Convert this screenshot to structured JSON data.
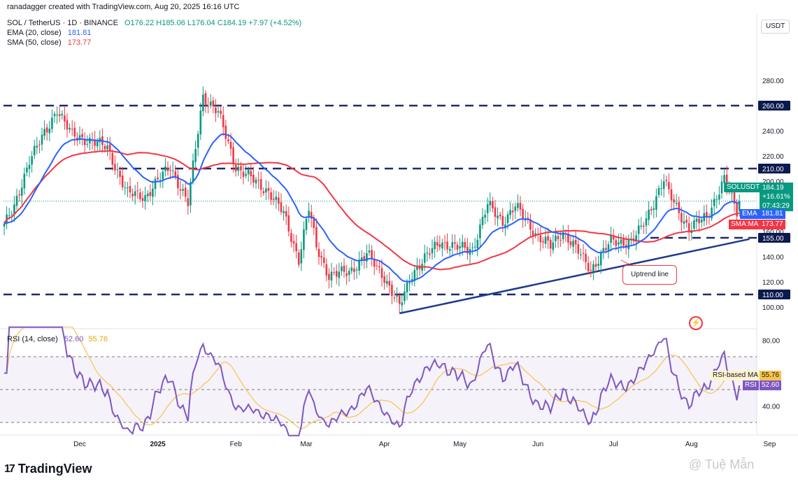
{
  "header": {
    "credit": "ranadagger created with TradingView.com, Aug 20, 2025 16:16 UTC",
    "symbol": "SOL / TetherUS · 1D · BINANCE",
    "ohlc": "O176.22 H185.06 L176.04 C184.19 +7.97 (+4.52%)",
    "ema_label": "EMA (20, close)",
    "ema_value": "181.81",
    "sma_label": "SMA (50, close)",
    "sma_value": "173.77",
    "rsi_label": "RSI (14, close)",
    "rsi_value": "52.60",
    "rsi_ma_value": "55.76"
  },
  "currency": "USDT",
  "colors": {
    "up": "#089981",
    "down": "#f23645",
    "ema": "#2962ff",
    "sma": "#f23645",
    "rsi": "#7e57c2",
    "rsi_ma": "#f7c34a",
    "trend": "#1e3a8a",
    "level": "#1e2a6e"
  },
  "price_labels": {
    "current": "184.19",
    "change": "+16.61%",
    "countdown": "07:43:29",
    "symbol_tag": "SOLUSDT",
    "ema_tag": "EMA",
    "ema_val": "181.81",
    "sma_tag": "SMA:MA",
    "sma_val": "173.77",
    "rsi_ma_tag": "RSI-based MA",
    "rsi_ma_val": "55.76",
    "rsi_tag": "RSI",
    "rsi_val": "52.60"
  },
  "annotation": "Uptrend line",
  "logo": "TradingView",
  "watermark": "@ Tuệ Mẫn",
  "chart_data": [
    {
      "type": "candlestick",
      "title": "SOL / TetherUS · 1D · BINANCE",
      "ylim": [
        90,
        295
      ],
      "y_ticks": [
        "100.00",
        "120.00",
        "140.00",
        "160.00",
        "180.00",
        "200.00",
        "220.00",
        "240.00",
        "260.00",
        "280.00"
      ],
      "x_ticks": [
        "Dec",
        "2025",
        "Feb",
        "Mar",
        "Apr",
        "May",
        "Jun",
        "Jul",
        "Aug",
        "Sep"
      ],
      "horizontal_levels": [
        260,
        210,
        155,
        110
      ],
      "level_labels": [
        "260.00",
        "210.00",
        "155.00",
        "110.00"
      ],
      "trendline": [
        {
          "date": "2025-04-07",
          "price": 95
        },
        {
          "date": "2025-08-24",
          "price": 154
        }
      ],
      "close_keypoints": [
        [
          "2024-11-01",
          166
        ],
        [
          "2024-11-05",
          178
        ],
        [
          "2024-11-11",
          218
        ],
        [
          "2024-11-18",
          240
        ],
        [
          "2024-11-22",
          258
        ],
        [
          "2024-11-28",
          236
        ],
        [
          "2024-12-06",
          232
        ],
        [
          "2024-12-12",
          226
        ],
        [
          "2024-12-20",
          190
        ],
        [
          "2024-12-27",
          188
        ],
        [
          "2025-01-06",
          212
        ],
        [
          "2025-01-13",
          182
        ],
        [
          "2025-01-18",
          255
        ],
        [
          "2025-01-19",
          268
        ],
        [
          "2025-01-25",
          254
        ],
        [
          "2025-02-01",
          212
        ],
        [
          "2025-02-03",
          208
        ],
        [
          "2025-02-14",
          192
        ],
        [
          "2025-02-20",
          174
        ],
        [
          "2025-02-26",
          138
        ],
        [
          "2025-03-02",
          178
        ],
        [
          "2025-03-05",
          148
        ],
        [
          "2025-03-10",
          125
        ],
        [
          "2025-03-18",
          128
        ],
        [
          "2025-03-25",
          142
        ],
        [
          "2025-04-01",
          124
        ],
        [
          "2025-04-07",
          100
        ],
        [
          "2025-04-12",
          127
        ],
        [
          "2025-04-23",
          152
        ],
        [
          "2025-04-30",
          147
        ],
        [
          "2025-05-06",
          146
        ],
        [
          "2025-05-12",
          181
        ],
        [
          "2025-05-18",
          168
        ],
        [
          "2025-05-23",
          180
        ],
        [
          "2025-06-01",
          156
        ],
        [
          "2025-06-06",
          148
        ],
        [
          "2025-06-11",
          160
        ],
        [
          "2025-06-22",
          130
        ],
        [
          "2025-06-30",
          152
        ],
        [
          "2025-07-08",
          152
        ],
        [
          "2025-07-12",
          162
        ],
        [
          "2025-07-21",
          201
        ],
        [
          "2025-07-23",
          190
        ],
        [
          "2025-07-31",
          162
        ],
        [
          "2025-08-07",
          172
        ],
        [
          "2025-08-14",
          201
        ],
        [
          "2025-08-19",
          176
        ],
        [
          "2025-08-20",
          184.19
        ]
      ],
      "series": [
        {
          "name": "EMA (20, close)",
          "last": 181.81
        },
        {
          "name": "SMA (50, close)",
          "last": 173.77
        }
      ],
      "last": {
        "open": 176.22,
        "high": 185.06,
        "low": 176.04,
        "close": 184.19,
        "change": 7.97,
        "change_pct": 4.52
      }
    },
    {
      "type": "line",
      "title": "RSI (14, close)",
      "ylim": [
        22,
        88
      ],
      "y_ticks": [
        "40.00",
        "60.00",
        "80.00"
      ],
      "bands": [
        30,
        50,
        70
      ],
      "series": [
        {
          "name": "RSI",
          "last": 52.6
        },
        {
          "name": "RSI-based MA",
          "last": 55.76
        }
      ]
    }
  ]
}
